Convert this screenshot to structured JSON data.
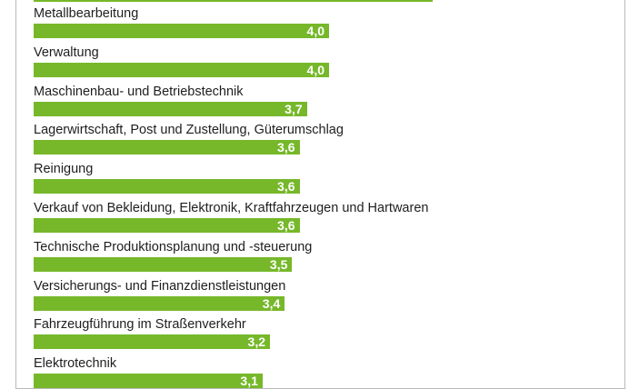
{
  "chart_data": {
    "type": "bar",
    "orientation": "horizontal",
    "bar_color": "#76b82a",
    "categories": [
      "Metallbearbeitung",
      "Verwaltung",
      "Maschinenbau- und Betriebstechnik",
      "Lagerwirtschaft, Post und Zustellung, Güterumschlag",
      "Reinigung",
      "Verkauf von Bekleidung, Elektronik, Kraftfahrzeugen und Hartwaren",
      "Technische Produktionsplanung und -steuerung",
      "Versicherungs- und Finanzdienstleistungen",
      "Fahrzeugführung im Straßenverkehr",
      "Elektrotechnik"
    ],
    "values": [
      4.0,
      4.0,
      3.7,
      3.6,
      3.6,
      3.6,
      3.5,
      3.4,
      3.2,
      3.1
    ],
    "value_labels": [
      "4,0",
      "4,0",
      "3,7",
      "3,6",
      "3,6",
      "3,6",
      "3,5",
      "3,4",
      "3,2",
      "3,1"
    ],
    "partial_top_bar_value": 5.4
  }
}
